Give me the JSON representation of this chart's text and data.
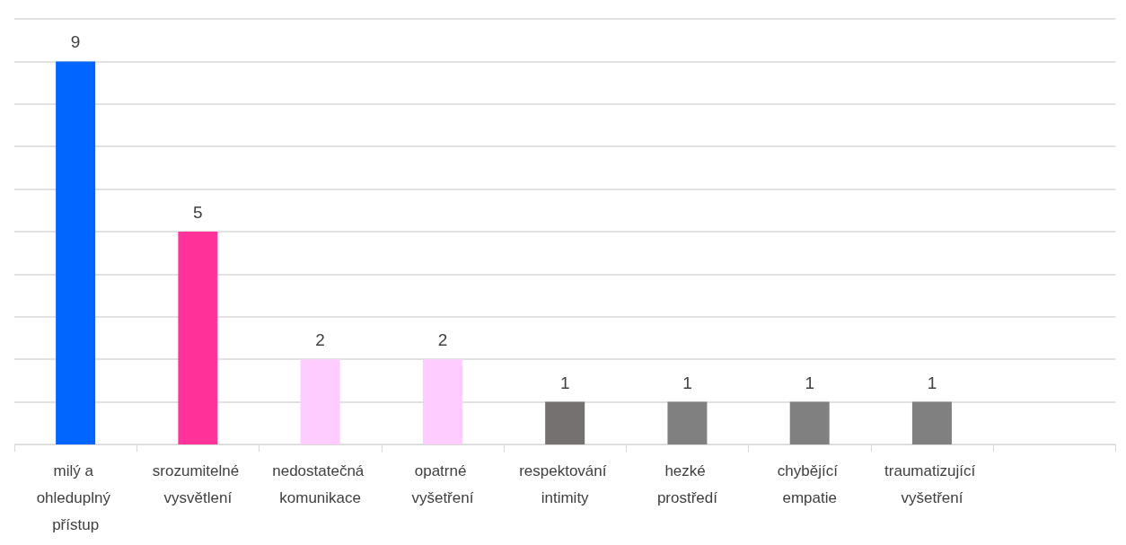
{
  "chart_data": {
    "type": "bar",
    "categories": [
      "milý a ohleduplný přístup",
      "srozumitelné vysvětlení",
      "nedostatečná komunikace",
      "opatrné vyšetření",
      "respektování intimity",
      "hezké prostředí",
      "chybějící empatie",
      "traumatizující vyšetření",
      null
    ],
    "values": [
      9,
      5,
      2,
      2,
      1,
      1,
      1,
      1,
      null
    ],
    "colors": [
      "#0066ff",
      "#ff3399",
      "#ffccff",
      "#ffccff",
      "#767171",
      "#808080",
      "#808080",
      "#808080",
      null
    ],
    "ylim": [
      0,
      10
    ],
    "yticks": [
      0,
      1,
      2,
      3,
      4,
      5,
      6,
      7,
      8,
      9,
      10
    ],
    "grid": "y",
    "tick_labels": "x",
    "data_labels": true
  }
}
